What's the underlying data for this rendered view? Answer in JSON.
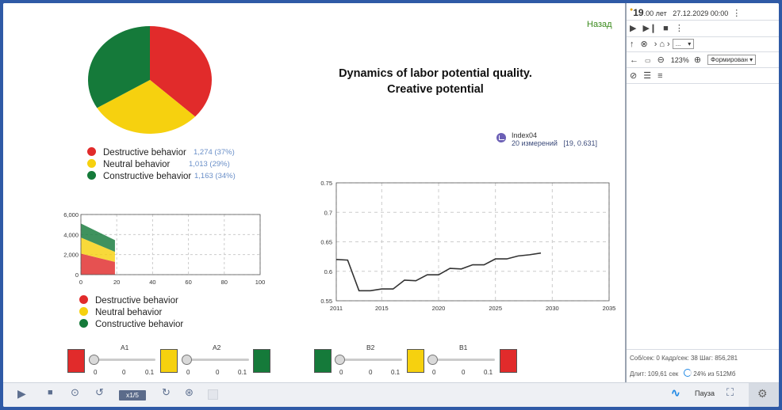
{
  "header": {
    "back_label": "Назад",
    "title_line1": "Dynamics of labor potential quality.",
    "title_line2": "Creative potential"
  },
  "pie_legend": [
    {
      "label": "Destructive behavior",
      "value": "1,274 (37%)",
      "color": "#e12b2b"
    },
    {
      "label": "Neutral behavior",
      "value": "1,013 (29%)",
      "color": "#f6d10f"
    },
    {
      "label": "Constructive behavior",
      "value": "1,163 (34%)",
      "color": "#157a3a"
    }
  ],
  "area_legend": [
    {
      "label": "Destructive behavior",
      "color": "#e12b2b"
    },
    {
      "label": "Neutral behavior",
      "color": "#f6d10f"
    },
    {
      "label": "Constructive behavior",
      "color": "#157a3a"
    }
  ],
  "index_info": {
    "name": "Index04",
    "sub": "20 измерений",
    "point": "[19, 0.631]"
  },
  "sliders": {
    "a1": {
      "label": "A1",
      "min": "0",
      "value": "0",
      "max": "0.1"
    },
    "a2": {
      "label": "A2",
      "min": "0",
      "value": "0",
      "max": "0.1"
    },
    "b2": {
      "label": "B2",
      "min": "0",
      "value": "0",
      "max": "0.1"
    },
    "b1": {
      "label": "B1",
      "min": "0",
      "value": "0",
      "max": "0.1"
    }
  },
  "right_panel": {
    "time_big": "19",
    "time_suffix": ".00 лет",
    "datetime": "27.12.2029 00:00",
    "zoom": "123%",
    "mode_select": "Формирован",
    "nav_select": "...",
    "stats_line1": "Соб/сек: 0   Кадр/сек: 38   Шаг: 856,281",
    "stats_duration": "Длит: 109,61 сек",
    "stats_memory": "24% из 512Мб"
  },
  "bottom_bar": {
    "speed": "x1/5",
    "pause_label": "Пауза"
  },
  "chart_data": [
    {
      "type": "pie",
      "categories": [
        "Destructive behavior",
        "Neutral behavior",
        "Constructive behavior"
      ],
      "values": [
        1274,
        1013,
        1163
      ],
      "colors": [
        "#e12b2b",
        "#f6d10f",
        "#157a3a"
      ]
    },
    {
      "type": "area",
      "stacked": true,
      "x": [
        0,
        19
      ],
      "series": [
        {
          "name": "Destructive behavior",
          "values": [
            2100,
            1270
          ],
          "color": "#e12b2b"
        },
        {
          "name": "Neutral behavior",
          "values": [
            1600,
            1010
          ],
          "color": "#f6d10f"
        },
        {
          "name": "Constructive behavior",
          "values": [
            1400,
            1160
          ],
          "color": "#157a3a"
        }
      ],
      "xlim": [
        0,
        100
      ],
      "ylim": [
        0,
        6000
      ],
      "xticks": [
        "0",
        "20",
        "40",
        "60",
        "80",
        "100"
      ],
      "yticks": [
        "0",
        "2,000",
        "4,000",
        "6,000"
      ],
      "grid": true
    },
    {
      "type": "line",
      "x": [
        2011,
        2012,
        2013,
        2014,
        2015,
        2016,
        2017,
        2018,
        2019,
        2020,
        2021,
        2022,
        2023,
        2024,
        2025,
        2026,
        2027,
        2028,
        2029
      ],
      "y": [
        0.62,
        0.619,
        0.567,
        0.567,
        0.57,
        0.57,
        0.585,
        0.584,
        0.594,
        0.594,
        0.605,
        0.604,
        0.611,
        0.611,
        0.621,
        0.621,
        0.626,
        0.628,
        0.631
      ],
      "xlim": [
        2011,
        2035
      ],
      "ylim": [
        0.55,
        0.75
      ],
      "xticks": [
        "2011",
        "2015",
        "2020",
        "2025",
        "2030",
        "2035"
      ],
      "yticks": [
        "0.55",
        "0.6",
        "0.65",
        "0.7",
        "0.75"
      ],
      "grid": true,
      "color": "#333333"
    }
  ]
}
